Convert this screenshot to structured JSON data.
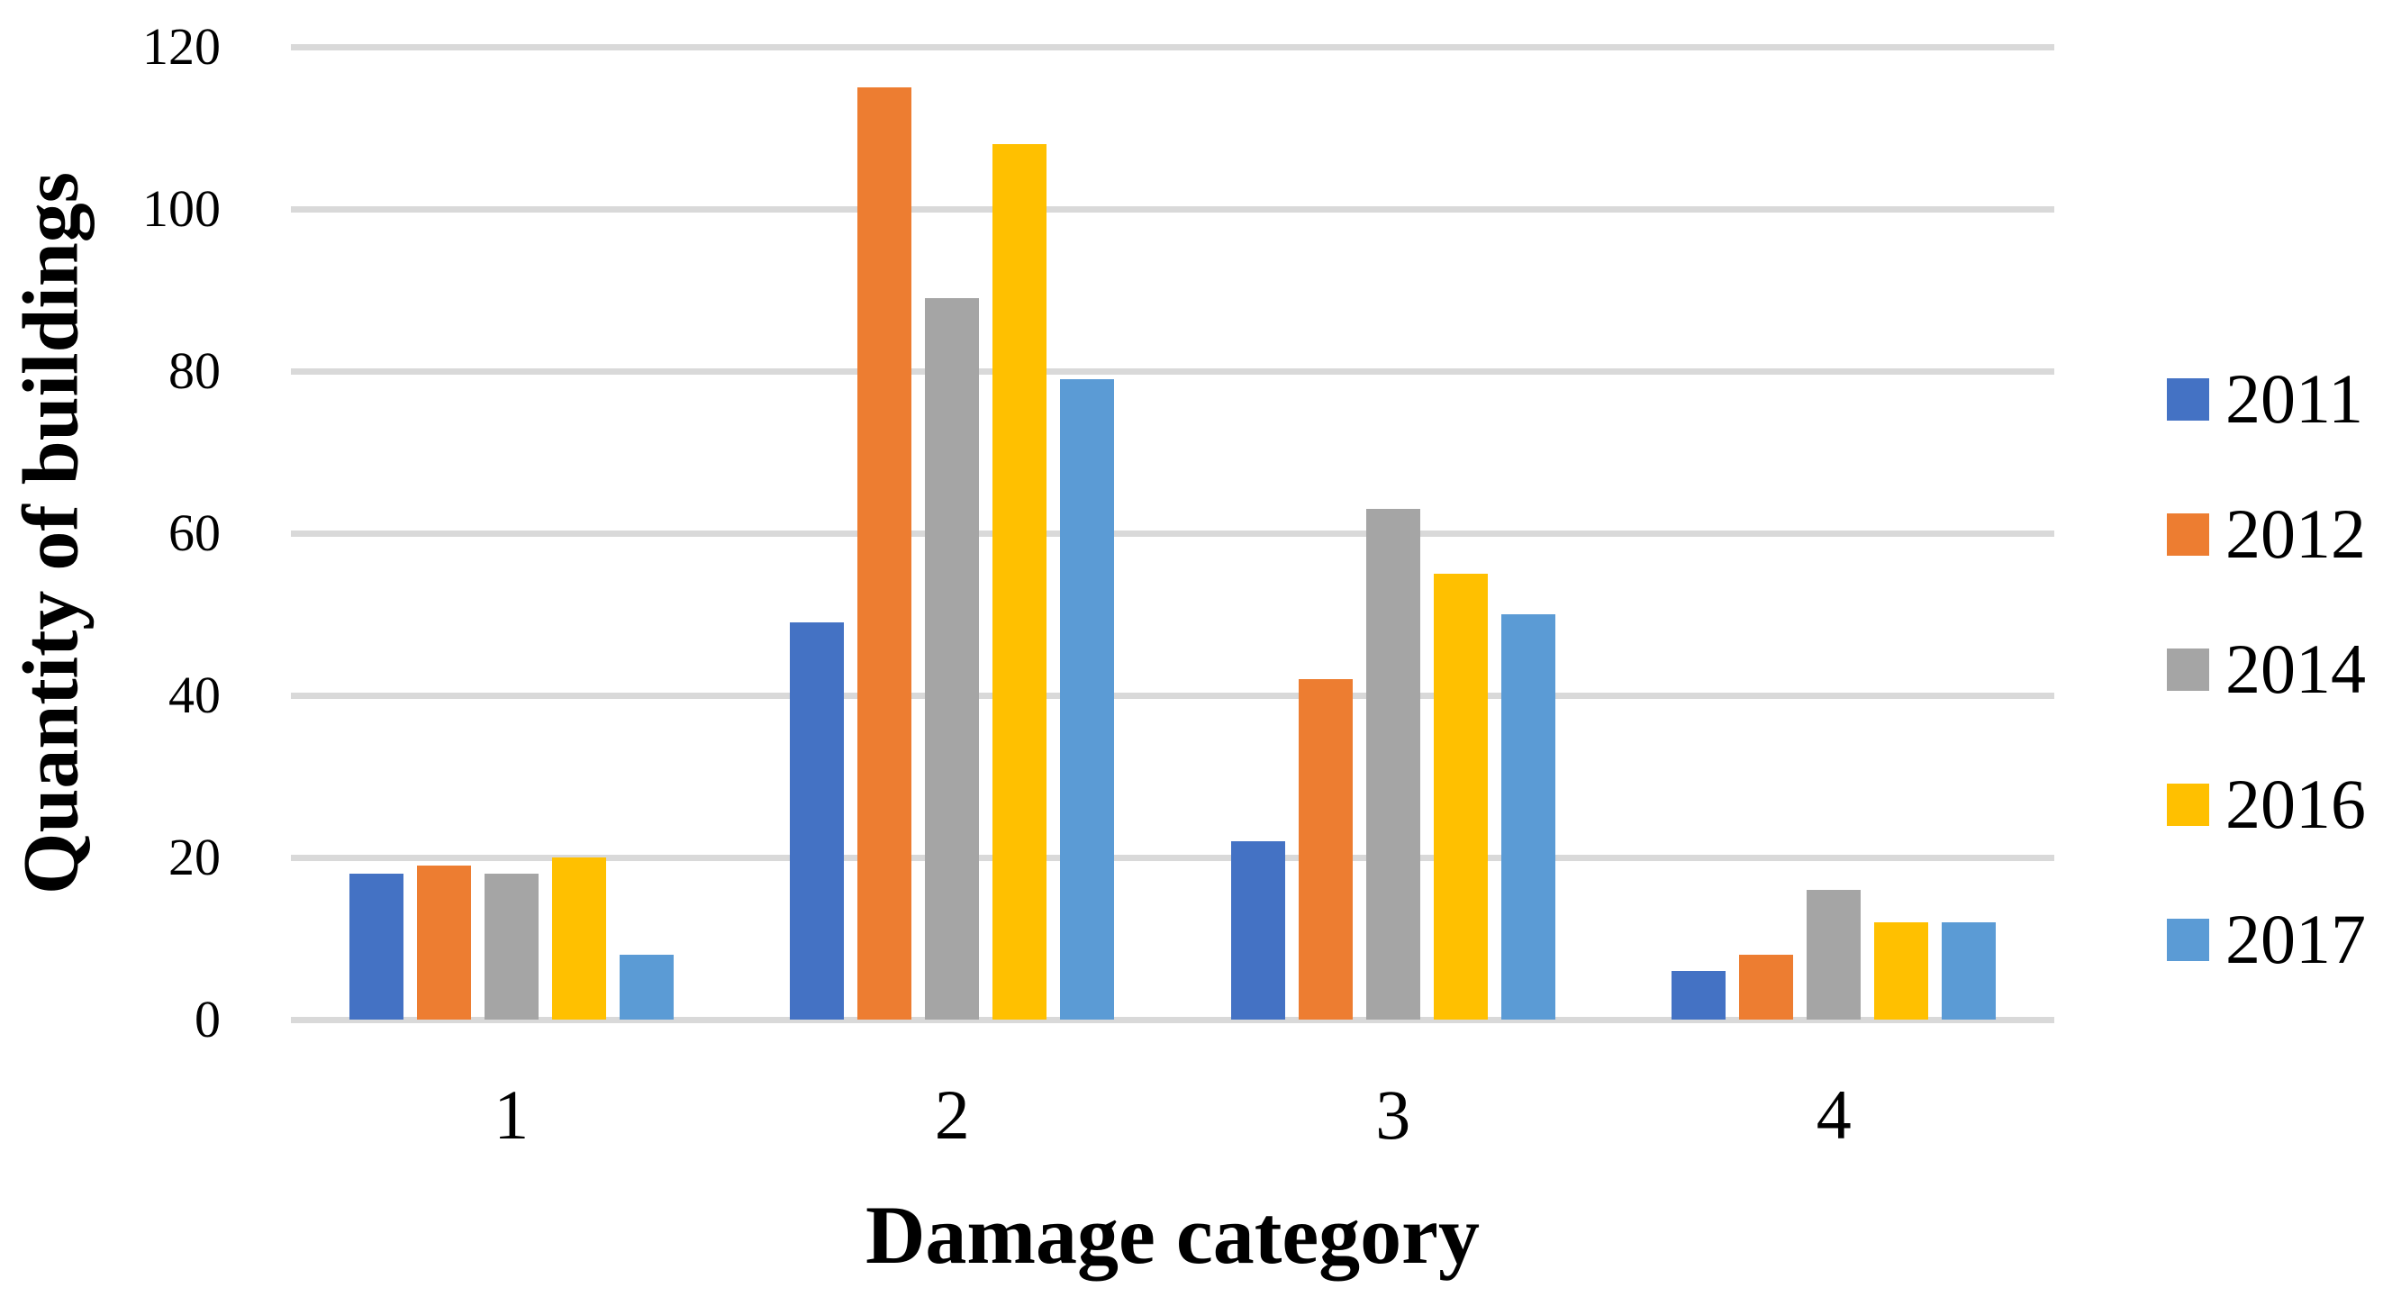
{
  "chart_data": {
    "type": "bar",
    "title": "",
    "xlabel": "Damage category",
    "ylabel": "Quantity of buildings",
    "categories": [
      "1",
      "2",
      "3",
      "4"
    ],
    "series": [
      {
        "name": "2011",
        "color": "#4472C4",
        "values": [
          18,
          49,
          22,
          6
        ]
      },
      {
        "name": "2012",
        "color": "#ED7D31",
        "values": [
          19,
          115,
          42,
          8
        ]
      },
      {
        "name": "2014",
        "color": "#A5A5A5",
        "values": [
          18,
          89,
          63,
          16
        ]
      },
      {
        "name": "2016",
        "color": "#FFC000",
        "values": [
          20,
          108,
          55,
          12
        ]
      },
      {
        "name": "2017",
        "color": "#5B9BD5",
        "values": [
          8,
          79,
          50,
          12
        ]
      }
    ],
    "ylim": [
      0,
      120
    ],
    "yticks": [
      0,
      20,
      40,
      60,
      80,
      100,
      120
    ],
    "grid": true,
    "gridline_color": "#D9D9D9",
    "legend_position": "right",
    "background_color": "#FFFFFF",
    "text_color": "#000000"
  }
}
